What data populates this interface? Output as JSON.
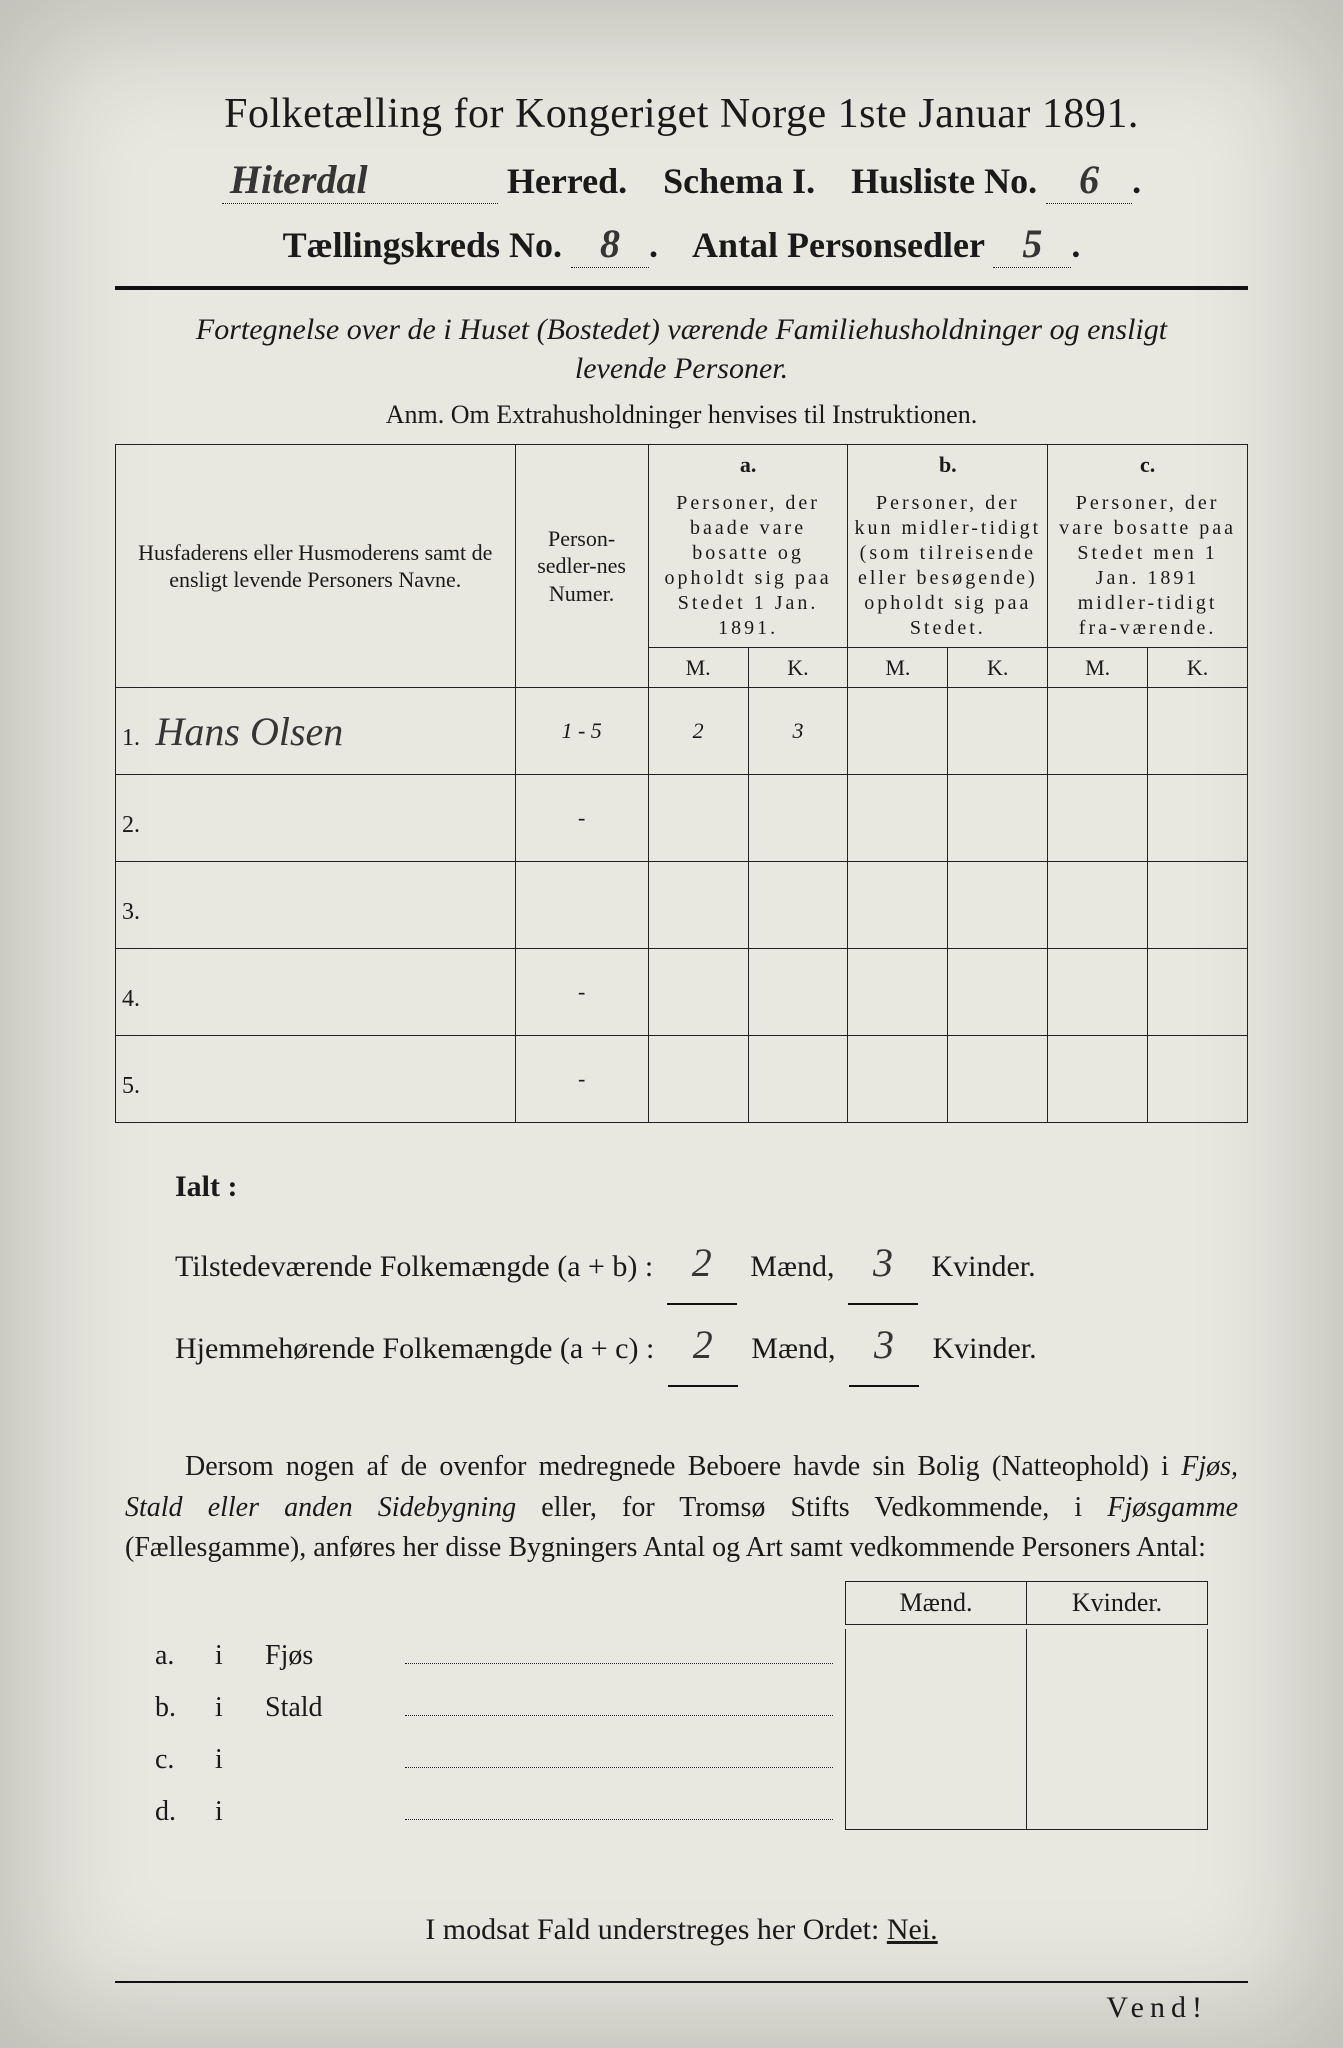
{
  "header": {
    "title": "Folketælling for Kongeriget Norge 1ste Januar 1891.",
    "herred_hand": "Hiterdal",
    "herred_label": "Herred.",
    "schema_label": "Schema I.",
    "husliste_label": "Husliste No.",
    "husliste_no": "6",
    "kreds_label": "Tællingskreds No.",
    "kreds_no": "8",
    "antal_label": "Antal Personsedler",
    "antal_no": "5"
  },
  "fortegnelse": "Fortegnelse over de i Huset (Bostedet) værende Familiehusholdninger og ensligt levende Personer.",
  "anm": "Anm.  Om Extrahusholdninger henvises til Instruktionen.",
  "table": {
    "col_names": "Husfaderens eller Husmoderens samt de ensligt levende Personers Navne.",
    "col_num": "Person-sedler-nes Numer.",
    "col_a_top": "a.",
    "col_a": "Personer, der baade vare bosatte og opholdt sig paa Stedet 1 Jan. 1891.",
    "col_b_top": "b.",
    "col_b": "Personer, der kun midler-tidigt (som tilreisende eller besøgende) opholdt sig paa Stedet.",
    "col_c_top": "c.",
    "col_c": "Personer, der vare bosatte paa Stedet men 1 Jan. 1891 midler-tidigt fra-værende.",
    "mk_m": "M.",
    "mk_k": "K.",
    "rows": [
      {
        "n": "1.",
        "name": "Hans Olsen",
        "num": "1 - 5",
        "a_m": "2",
        "a_k": "3",
        "b_m": "",
        "b_k": "",
        "c_m": "",
        "c_k": ""
      },
      {
        "n": "2.",
        "name": "",
        "num": "-",
        "a_m": "",
        "a_k": "",
        "b_m": "",
        "b_k": "",
        "c_m": "",
        "c_k": ""
      },
      {
        "n": "3.",
        "name": "",
        "num": "",
        "a_m": "",
        "a_k": "",
        "b_m": "",
        "b_k": "",
        "c_m": "",
        "c_k": ""
      },
      {
        "n": "4.",
        "name": "",
        "num": "-",
        "a_m": "",
        "a_k": "",
        "b_m": "",
        "b_k": "",
        "c_m": "",
        "c_k": ""
      },
      {
        "n": "5.",
        "name": "",
        "num": "-",
        "a_m": "",
        "a_k": "",
        "b_m": "",
        "b_k": "",
        "c_m": "",
        "c_k": ""
      }
    ]
  },
  "ialt": {
    "heading": "Ialt :",
    "line1_label": "Tilstedeværende Folkemængde (a + b) :",
    "line2_label": "Hjemmehørende Folkemængde (a + c) :",
    "maend": "Mænd,",
    "kvinder": "Kvinder.",
    "l1_m": "2",
    "l1_k": "3",
    "l2_m": "2",
    "l2_k": "3"
  },
  "para": "Dersom nogen af de ovenfor medregnede Beboere havde sin Bolig (Natteophold) i Fjøs, Stald eller anden Sidebygning eller, for Tromsø Stifts Vedkommende, i Fjøsgamme (Fællesgamme), anføres her disse Bygningers Antal og Art samt vedkommende Personers Antal:",
  "sidebygning": {
    "mk_m": "Mænd.",
    "mk_k": "Kvinder.",
    "rows": [
      {
        "a": "a.",
        "i": "i",
        "w": "Fjøs"
      },
      {
        "a": "b.",
        "i": "i",
        "w": "Stald"
      },
      {
        "a": "c.",
        "i": "i",
        "w": ""
      },
      {
        "a": "d.",
        "i": "i",
        "w": ""
      }
    ]
  },
  "bottom": {
    "text_pre": "I modsat Fald understreges her Ordet: ",
    "nei": "Nei.",
    "vend": "Vend!"
  },
  "colors": {
    "paper": "#e8e8e0",
    "ink": "#1a1a1a",
    "hand": "#353535"
  }
}
